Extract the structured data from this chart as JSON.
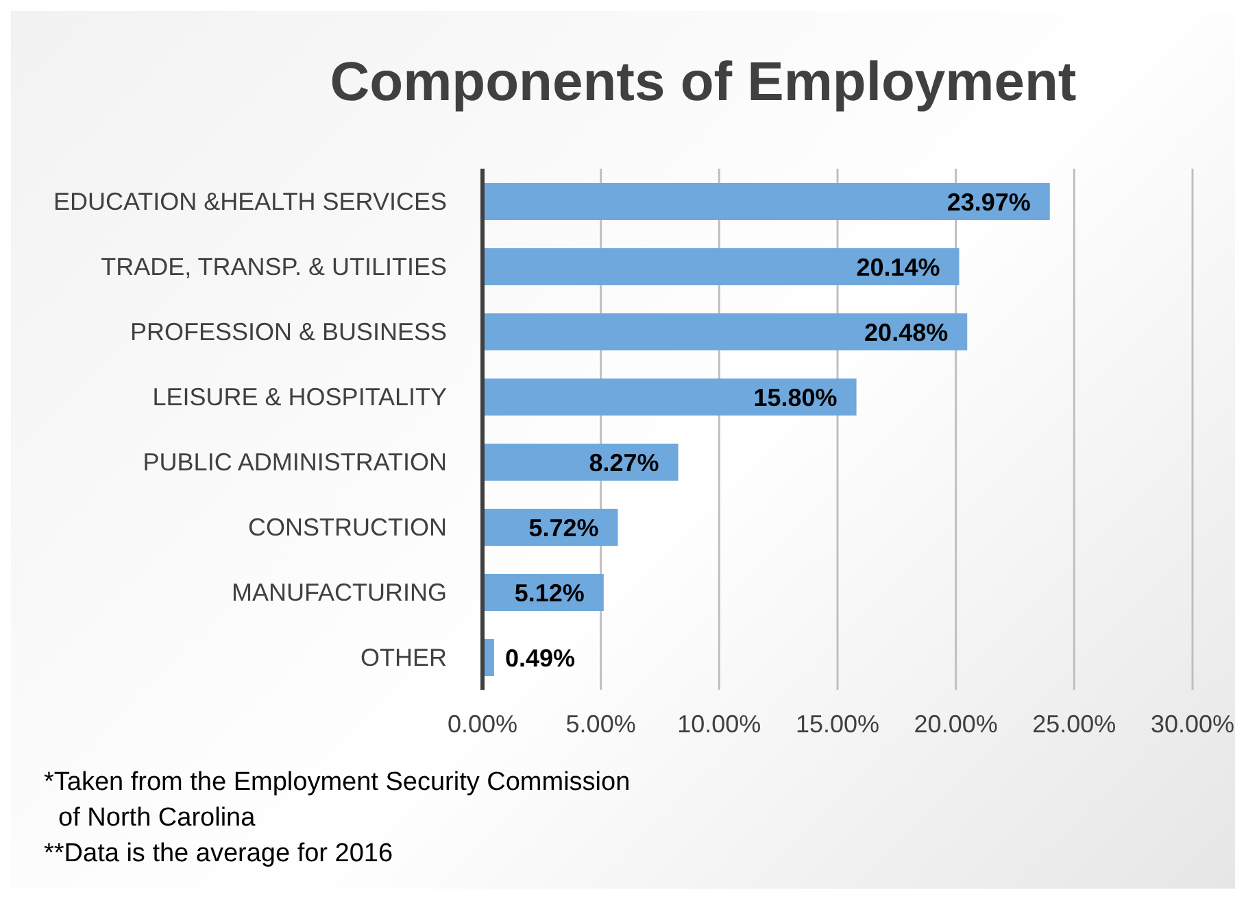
{
  "chart_data": {
    "type": "bar",
    "orientation": "horizontal",
    "title": "Components of Employment",
    "categories": [
      "EDUCATION &HEALTH SERVICES",
      "TRADE, TRANSP. & UTILITIES",
      "PROFESSION & BUSINESS",
      "LEISURE & HOSPITALITY",
      "PUBLIC ADMINISTRATION",
      "CONSTRUCTION",
      "MANUFACTURING",
      "OTHER"
    ],
    "values": [
      23.97,
      20.14,
      20.48,
      15.8,
      8.27,
      5.72,
      5.12,
      0.49
    ],
    "value_labels": [
      "23.97%",
      "20.14%",
      "20.48%",
      "15.80%",
      "8.27%",
      "5.72%",
      "5.12%",
      "0.49%"
    ],
    "color": "#6fa8dc",
    "xlim": [
      0,
      30
    ],
    "xticks": [
      {
        "value": 0,
        "label": "0.00%"
      },
      {
        "value": 5,
        "label": "5.00%"
      },
      {
        "value": 10,
        "label": "10.00%"
      },
      {
        "value": 15,
        "label": "15.00%"
      },
      {
        "value": 20,
        "label": "20.00%"
      },
      {
        "value": 25,
        "label": "25.00%"
      },
      {
        "value": 30,
        "label": "30.00%"
      }
    ],
    "grid": "x",
    "annotations": [
      "*Taken from the Employment Security Commission\n  of North Carolina",
      "**Data is the average for 2016"
    ]
  }
}
